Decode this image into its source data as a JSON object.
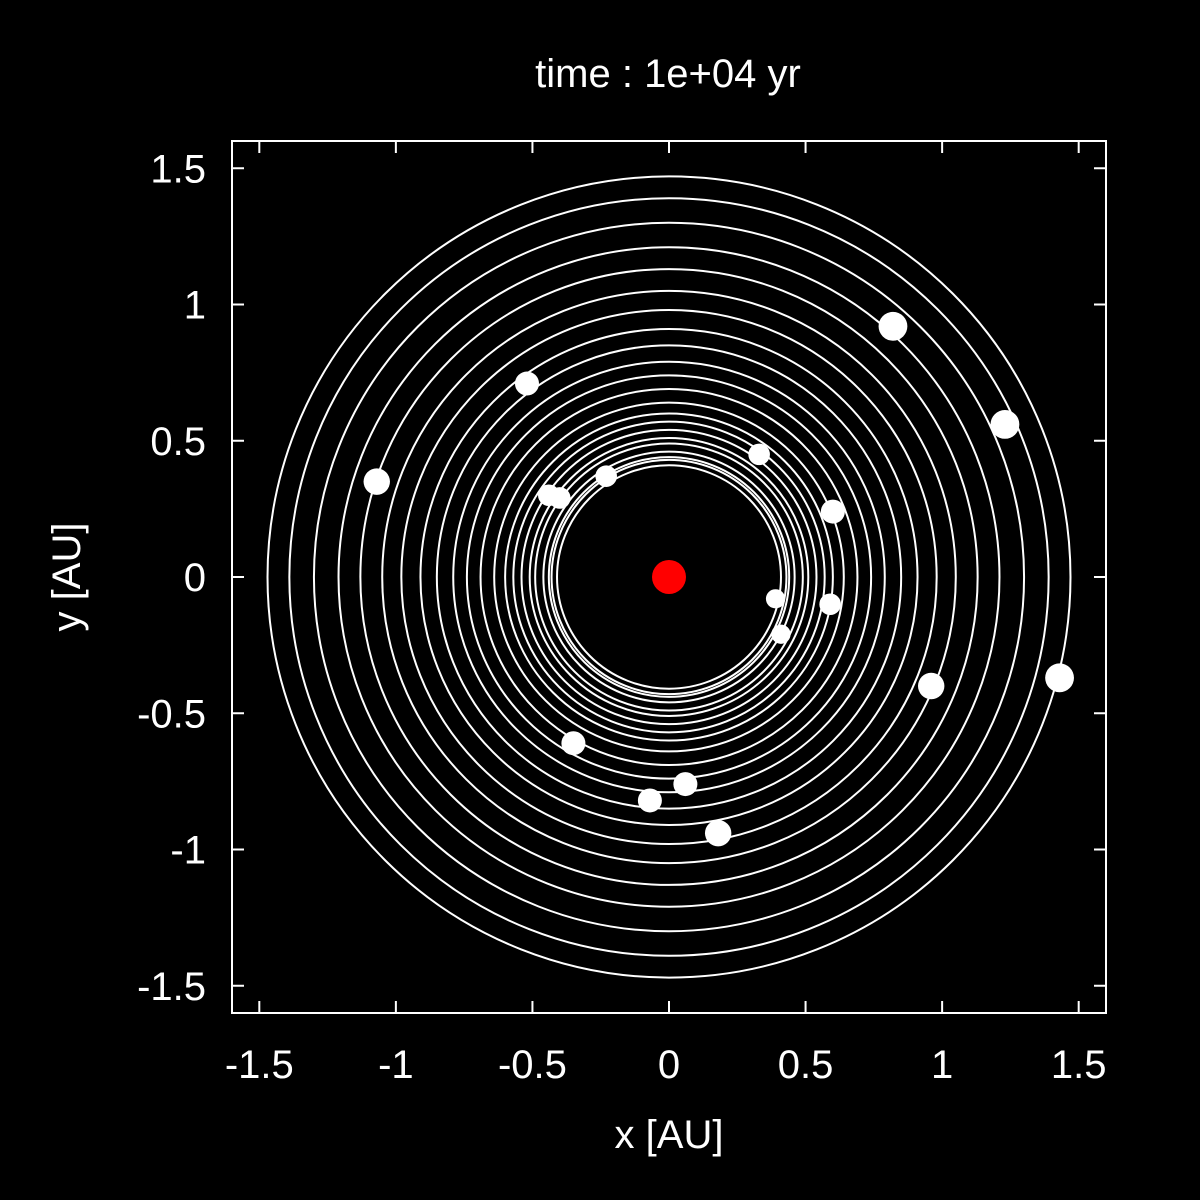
{
  "chart_data": {
    "type": "scatter",
    "title": "time : 1e+04 yr",
    "xlabel": "x [AU]",
    "ylabel": "y [AU]",
    "xlim": [
      -1.6,
      1.6
    ],
    "ylim": [
      -1.6,
      1.6
    ],
    "x_ticks": [
      -1.5,
      -1,
      -0.5,
      0,
      0.5,
      1,
      1.5
    ],
    "y_ticks": [
      -1.5,
      -1,
      -0.5,
      0,
      0.5,
      1,
      1.5
    ],
    "x_tick_labels": [
      "-1.5",
      "-1",
      "-0.5",
      "0",
      "0.5",
      "1",
      "1.5"
    ],
    "y_tick_labels": [
      "-1.5",
      "-1",
      "-0.5",
      "0",
      "0.5",
      "1",
      "1.5"
    ],
    "grid": false,
    "background_color": "#000000",
    "foreground_color": "#ffffff",
    "star": {
      "x": 0.0,
      "y": 0.0,
      "color": "#ff0000"
    },
    "orbit_radii": [
      0.41,
      0.43,
      0.44,
      0.46,
      0.49,
      0.51,
      0.54,
      0.57,
      0.6,
      0.64,
      0.69,
      0.74,
      0.79,
      0.85,
      0.91,
      0.98,
      1.05,
      1.13,
      1.21,
      1.3,
      1.39,
      1.47
    ],
    "planets": [
      {
        "x": -0.52,
        "y": 0.71,
        "size": 1.0
      },
      {
        "x": -1.07,
        "y": 0.35,
        "size": 1.1
      },
      {
        "x": -0.44,
        "y": 0.3,
        "size": 0.9
      },
      {
        "x": -0.4,
        "y": 0.29,
        "size": 0.9
      },
      {
        "x": -0.23,
        "y": 0.37,
        "size": 0.9
      },
      {
        "x": 0.33,
        "y": 0.45,
        "size": 0.9
      },
      {
        "x": 0.6,
        "y": 0.24,
        "size": 1.0
      },
      {
        "x": 0.39,
        "y": -0.08,
        "size": 0.8
      },
      {
        "x": 0.59,
        "y": -0.1,
        "size": 0.9
      },
      {
        "x": 0.41,
        "y": -0.21,
        "size": 0.8
      },
      {
        "x": 0.82,
        "y": 0.92,
        "size": 1.2
      },
      {
        "x": 1.23,
        "y": 0.56,
        "size": 1.2
      },
      {
        "x": 0.96,
        "y": -0.4,
        "size": 1.1
      },
      {
        "x": 1.43,
        "y": -0.37,
        "size": 1.2
      },
      {
        "x": -0.35,
        "y": -0.61,
        "size": 1.0
      },
      {
        "x": -0.07,
        "y": -0.82,
        "size": 1.0
      },
      {
        "x": 0.06,
        "y": -0.76,
        "size": 1.0
      },
      {
        "x": 0.18,
        "y": -0.94,
        "size": 1.1
      }
    ]
  }
}
